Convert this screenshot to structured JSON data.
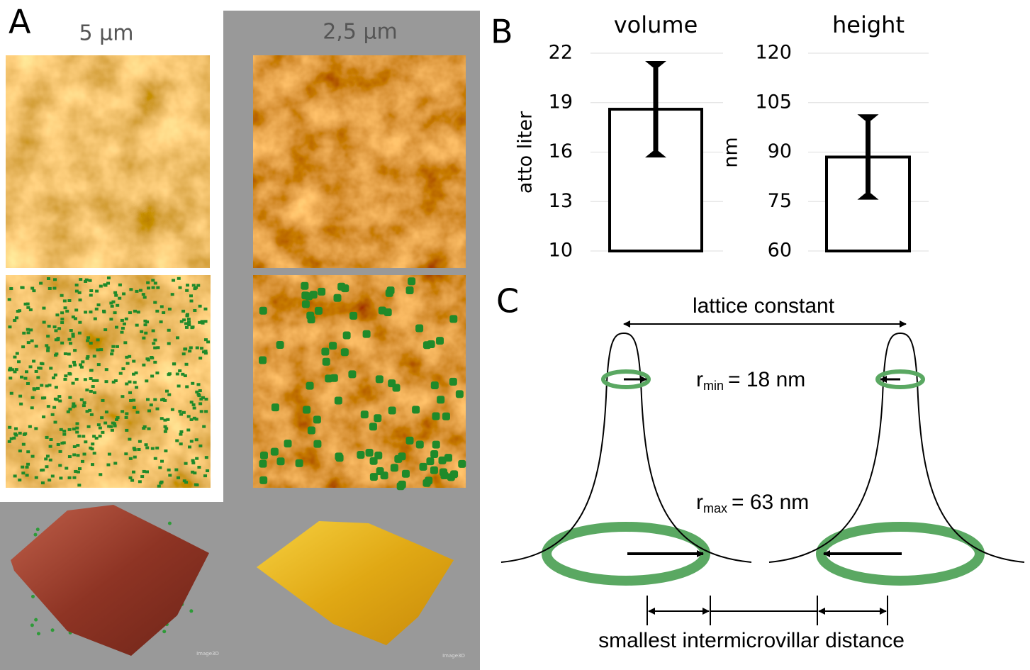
{
  "panel_a": {
    "label": "A",
    "scales": [
      "5 µm",
      "2,5 µm"
    ],
    "watermarks": [
      "Image3D",
      "Image3D"
    ]
  },
  "panel_b": {
    "label": "B"
  },
  "chart_data": [
    {
      "type": "bar",
      "title": "volume",
      "y_label": "atto liter",
      "categories": [
        null
      ],
      "values": [
        18.6
      ],
      "errors": [
        2.8
      ],
      "color": "#ffffff",
      "ylim": [
        10,
        22
      ],
      "yticks": [
        10,
        13,
        16,
        19,
        22
      ],
      "grid": true
    },
    {
      "type": "bar",
      "title": "height",
      "y_label": "nm",
      "categories": [
        null
      ],
      "values": [
        88.5
      ],
      "errors": [
        12.3
      ],
      "color": "#ffffff",
      "ylim": [
        60,
        120
      ],
      "yticks": [
        60,
        75,
        90,
        105,
        120
      ],
      "grid": true
    }
  ],
  "panel_c": {
    "label": "C",
    "lattice": "lattice constant",
    "r_min": {
      "symbol": "r",
      "subscript": "min",
      "text": "= 18 nm"
    },
    "r_max": {
      "symbol": "r",
      "subscript": "max",
      "text": "= 63 nm"
    },
    "distance": "smallest intermicrovillar distance"
  }
}
